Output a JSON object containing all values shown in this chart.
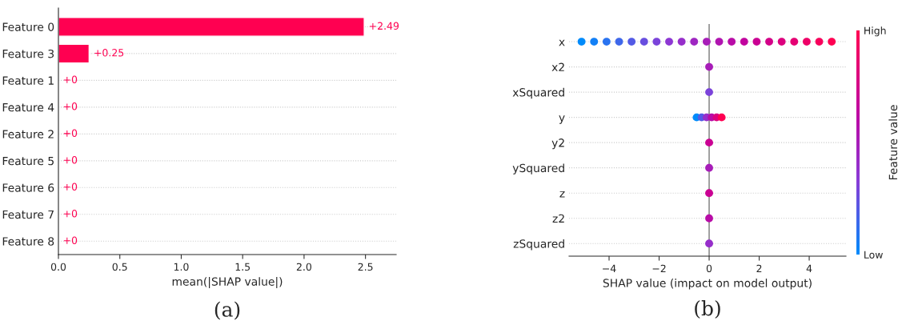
{
  "chart_data": [
    {
      "type": "bar",
      "orientation": "horizontal",
      "categories": [
        "Feature 0",
        "Feature 3",
        "Feature 1",
        "Feature 4",
        "Feature 2",
        "Feature 5",
        "Feature 6",
        "Feature 7",
        "Feature 8"
      ],
      "values": [
        2.49,
        0.25,
        0,
        0,
        0,
        0,
        0,
        0,
        0
      ],
      "value_labels": [
        "+2.49",
        "+0.25",
        "+0",
        "+0",
        "+0",
        "+0",
        "+0",
        "+0",
        "+0"
      ],
      "color": "#ff0051",
      "xlim": [
        0,
        2.75
      ],
      "xticks": [
        {
          "value": 0,
          "label": "0.0"
        },
        0.5,
        {
          "value": 1,
          "label": "1.0"
        },
        1.5,
        {
          "value": 2,
          "label": "2.0"
        },
        2.5
      ],
      "xlabel": "mean(|SHAP value|)",
      "grid": "y",
      "annotations": [
        "(a)"
      ]
    },
    {
      "type": "scatter",
      "orientation": "horizontal",
      "categories": [
        "x",
        "x2",
        "xSquared",
        "y",
        "y2",
        "ySquared",
        "z",
        "z2",
        "zSquared"
      ],
      "series": [
        {
          "values": [
            -5.1,
            0,
            0,
            -0.5,
            0,
            0,
            0,
            0,
            0
          ],
          "colors": [
            "#008bfb",
            "#a71db8",
            "#7b43da",
            "#008bfb",
            "#ca0093",
            "#a71db8",
            "#ca0093",
            "#b80ca7",
            "#962eca"
          ]
        },
        {
          "values": [
            -4.6,
            null,
            null,
            -0.3,
            null,
            null,
            null,
            null,
            null
          ],
          "colors": [
            "#1380f6",
            null,
            null,
            "#535ae5",
            null,
            null,
            null,
            null,
            null
          ]
        },
        {
          "values": [
            -4.1,
            null,
            null,
            -0.1,
            null,
            null,
            null,
            null,
            null
          ],
          "colors": [
            "#2973f0",
            null,
            null,
            "#962eca",
            null,
            null,
            null,
            null,
            null
          ]
        },
        {
          "values": [
            -3.6,
            null,
            null,
            0.1,
            null,
            null,
            null,
            null,
            null
          ],
          "colors": [
            "#3e67ea",
            null,
            null,
            "#b80ca7",
            null,
            null,
            null,
            null,
            null
          ]
        },
        {
          "values": [
            -3.1,
            null,
            null,
            0.3,
            null,
            null,
            null,
            null,
            null
          ],
          "colors": [
            "#535ae5",
            null,
            null,
            "#dc007e",
            null,
            null,
            null,
            null,
            null
          ]
        },
        {
          "values": [
            -2.6,
            null,
            null,
            0.5,
            null,
            null,
            null,
            null,
            null
          ],
          "colors": [
            "#684edf",
            null,
            null,
            "#ff0052",
            null,
            null,
            null,
            null,
            null
          ]
        },
        {
          "values": [
            -2.1,
            null,
            null,
            null,
            null,
            null,
            null,
            null,
            null
          ],
          "colors": [
            "#7b43da",
            null,
            null,
            null,
            null,
            null,
            null,
            null,
            null
          ]
        },
        {
          "values": [
            -1.6,
            null,
            null,
            null,
            null,
            null,
            null,
            null,
            null
          ],
          "colors": [
            "#8d37d3",
            null,
            null,
            null,
            null,
            null,
            null,
            null,
            null
          ]
        },
        {
          "values": [
            -1.1,
            null,
            null,
            null,
            null,
            null,
            null,
            null,
            null
          ],
          "colors": [
            "#962eca",
            null,
            null,
            null,
            null,
            null,
            null,
            null,
            null
          ]
        },
        {
          "values": [
            -0.6,
            null,
            null,
            null,
            null,
            null,
            null,
            null,
            null
          ],
          "colors": [
            "#9e26c1",
            null,
            null,
            null,
            null,
            null,
            null,
            null,
            null
          ]
        },
        {
          "values": [
            -0.1,
            null,
            null,
            null,
            null,
            null,
            null,
            null,
            null
          ],
          "colors": [
            "#a71db8",
            null,
            null,
            null,
            null,
            null,
            null,
            null,
            null
          ]
        },
        {
          "values": [
            0.4,
            null,
            null,
            null,
            null,
            null,
            null,
            null,
            null
          ],
          "colors": [
            "#b014b0",
            null,
            null,
            null,
            null,
            null,
            null,
            null,
            null
          ]
        },
        {
          "values": [
            0.9,
            null,
            null,
            null,
            null,
            null,
            null,
            null,
            null
          ],
          "colors": [
            "#b80ca7",
            null,
            null,
            null,
            null,
            null,
            null,
            null,
            null
          ]
        },
        {
          "values": [
            1.4,
            null,
            null,
            null,
            null,
            null,
            null,
            null,
            null
          ],
          "colors": [
            "#c1039e",
            null,
            null,
            null,
            null,
            null,
            null,
            null,
            null
          ]
        },
        {
          "values": [
            1.9,
            null,
            null,
            null,
            null,
            null,
            null,
            null,
            null
          ],
          "colors": [
            "#ca0093",
            null,
            null,
            null,
            null,
            null,
            null,
            null,
            null
          ]
        },
        {
          "values": [
            2.4,
            null,
            null,
            null,
            null,
            null,
            null,
            null,
            null
          ],
          "colors": [
            "#d30088",
            null,
            null,
            null,
            null,
            null,
            null,
            null,
            null
          ]
        },
        {
          "values": [
            2.9,
            null,
            null,
            null,
            null,
            null,
            null,
            null,
            null
          ],
          "colors": [
            "#dc007e",
            null,
            null,
            null,
            null,
            null,
            null,
            null,
            null
          ]
        },
        {
          "values": [
            3.4,
            null,
            null,
            null,
            null,
            null,
            null,
            null,
            null
          ],
          "colors": [
            "#e50073",
            null,
            null,
            null,
            null,
            null,
            null,
            null,
            null
          ]
        },
        {
          "values": [
            3.9,
            null,
            null,
            null,
            null,
            null,
            null,
            null,
            null
          ],
          "colors": [
            "#ee0067",
            null,
            null,
            null,
            null,
            null,
            null,
            null,
            null
          ]
        },
        {
          "values": [
            4.4,
            null,
            null,
            null,
            null,
            null,
            null,
            null,
            null
          ],
          "colors": [
            "#f7005c",
            null,
            null,
            null,
            null,
            null,
            null,
            null,
            null
          ]
        },
        {
          "values": [
            4.9,
            null,
            null,
            null,
            null,
            null,
            null,
            null,
            null
          ],
          "colors": [
            "#ff0052",
            null,
            null,
            null,
            null,
            null,
            null,
            null,
            null
          ]
        }
      ],
      "xlim": [
        -5.6,
        5.47
      ],
      "xticks": [
        {
          "value": -4,
          "label": "−4"
        },
        {
          "value": -2,
          "label": "−2"
        },
        0,
        2,
        4
      ],
      "xlabel": "SHAP value (impact on model output)",
      "grid": "y",
      "ref_lines": [
        {
          "axis": "x",
          "value": 0,
          "color": "#777777"
        }
      ],
      "clim": [
        0,
        1
      ],
      "cticks": [
        {
          "value": 0,
          "label": "Low"
        },
        {
          "value": 1,
          "label": "High"
        }
      ],
      "clabel": "Feature value",
      "annotations": [
        "(b)"
      ]
    }
  ]
}
